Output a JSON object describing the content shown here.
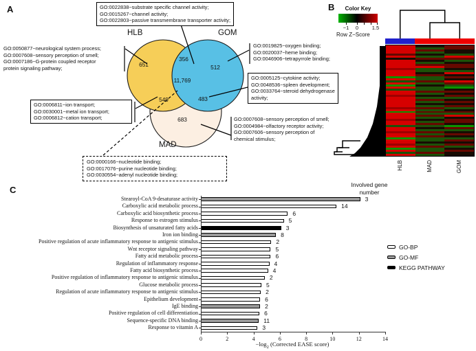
{
  "panelA": {
    "label": "A",
    "venn": {
      "set_labels": {
        "hlb": "HLB",
        "gom": "GOM",
        "mad": "MAD"
      },
      "set_colors": {
        "hlb": "#F6CE58",
        "gom": "#58C0E5",
        "mad": "#FCEFE2"
      },
      "counts": {
        "hlb_only": "651",
        "hlb_gom": "356",
        "gom_only": "512",
        "center": "11,769",
        "hlb_mad": "549",
        "gom_mad": "483",
        "mad_only": "683"
      }
    },
    "callouts": {
      "top": {
        "lines": [
          "GO:0022838~substrate specific channel activity;",
          "GO:0015267~channel activity;",
          "GO:0022803~passive transmembrane transporter activity;"
        ]
      },
      "left": {
        "lines": [
          "GO:0050877~neurological system process;",
          "GO:0007608~sensory perception of smell;",
          "GO:0007186~G-protein coupled receptor",
          "protein signaling pathway;"
        ]
      },
      "left_box": {
        "lines": [
          "GO:0006811~ion transport;",
          "GO:0030001~metal ion transport;",
          "GO:0006812~cation transport;"
        ]
      },
      "right1": {
        "lines": [
          "GO:0019825~oxygen binding;",
          "GO:0020037~heme binding;",
          "GO:0046906~tetrapyrrole binding;"
        ]
      },
      "right_box": {
        "lines": [
          "GO:0005125~cytokine activity;",
          "GO:0048536~spleen development;",
          "GO:0033764~steroid dehydrogenase",
          "activity;"
        ]
      },
      "right3": {
        "lines": [
          "GO:0007608~sensory perception of smell;",
          "GO:0004984~olfactory receptor activity;",
          "GO:0007606~sensory perception of",
          "chemical stimulus;"
        ]
      },
      "dashed_box": {
        "lines": [
          "GO:0000166~nucleotide binding;",
          "GO:0017076~purine nucleotide binding;",
          "GO:0030554~adenyl nucleotide binding;"
        ]
      }
    }
  },
  "panelB": {
    "label": "B",
    "color_key": {
      "title": "Color Key",
      "axis_label": "Row Z−Score",
      "tick_labels": [
        "−1",
        "0",
        "1.5"
      ],
      "gradient": [
        "#00b400",
        "#000000",
        "#cf0000"
      ]
    },
    "columns": [
      "HLB",
      "MAD",
      "GOM"
    ],
    "col_colors": [
      "#2121cc",
      "#ee0000",
      "#ee0000"
    ],
    "heatmap": {
      "palette": {
        "R": "#d60000",
        "O": "#9e0000",
        "r": "#660800",
        "G": "#0c9400",
        "g": "#1c5208",
        "K": "#170c03"
      },
      "rows": [
        "RKr",
        "Rgr",
        "RrK",
        "RgK",
        "rKg",
        "RgR",
        "Krr",
        "RKg",
        "RgK",
        "Rrr",
        "RRr",
        "OgK",
        "Rgg",
        "RKR",
        "RrK",
        "Ggr",
        "RgK",
        "grR",
        "Rgr",
        "GKg",
        "RgG",
        "ggK",
        "Rrr",
        "RgK",
        "OKr",
        "Rgg",
        "RrK",
        "Rgr",
        "RKK",
        "Rgr",
        "Org",
        "RgK",
        "Grr",
        "Rgg",
        "RrR",
        "RgK",
        "OKr",
        "Rgr",
        "RrK",
        "ggG",
        "RKr",
        "Rgg",
        "OrK",
        "Rgr",
        "RrK",
        "Ggg",
        "Rgr",
        "RKK",
        "Ogr",
        "Rrg",
        "GgK",
        "Rgr",
        "grK",
        "RgK"
      ]
    }
  },
  "panelC": {
    "label": "C",
    "header_lines": [
      "Involved gene",
      "number"
    ],
    "xlabel_pre": "−log",
    "xlabel_sub": "2",
    "xlabel_post": " (Corrected EASE score)"
  },
  "chart_data": [
    {
      "type": "venn",
      "title": "Differentially expressed gene overlap",
      "sets": [
        "HLB",
        "GOM",
        "MAD"
      ],
      "values": {
        "HLB": 651,
        "GOM": 512,
        "MAD": 683,
        "HLB∩GOM": 356,
        "HLB∩MAD": 549,
        "GOM∩MAD": 483,
        "HLB∩GOM∩MAD": 11769
      }
    },
    {
      "type": "bar",
      "orientation": "horizontal",
      "xlabel": "−log2 (Corrected EASE score)",
      "xlim": [
        0,
        14
      ],
      "x_ticks": [
        0,
        2,
        4,
        6,
        8,
        10,
        12,
        14
      ],
      "grid": false,
      "legend_position": "right-middle",
      "categories": [
        "Stearoyl-CoA 9-desaturase activity",
        "Carboxylic acid metabolic process",
        "Carboxylic acid biosynthetic process",
        "Response to estrogen stimulus",
        "Biosynthesis of unsaturated fatty acids",
        "Iron ion binding",
        "Positive regulation of acute inflammatory response to antigenic stimulus",
        "Wnt receptor signaling pathway",
        "Fatty acid metabolic process",
        "Regulation of inflammatory response",
        "Fatty acid biosynthetic process",
        "Positive regulation of inflammatory response to antigenic stimulus",
        "Glucose metabolic process",
        "Regulation of acute inflammatory response to antigenic stimulus",
        "Epithelium development",
        "IgE binding",
        "Positive regulation of cell differentiation",
        "Sequence-specific DNA binding",
        "Response to vitamin A"
      ],
      "values": [
        12.1,
        10.3,
        6.6,
        6.3,
        6.1,
        5.7,
        5.35,
        5.3,
        5.3,
        5.2,
        5.1,
        4.85,
        4.6,
        4.55,
        4.5,
        4.5,
        4.45,
        4.4,
        4.3
      ],
      "gene_numbers": [
        3,
        14,
        6,
        5,
        3,
        8,
        2,
        5,
        6,
        4,
        4,
        2,
        5,
        2,
        6,
        2,
        6,
        11,
        3
      ],
      "types": [
        "GO-MF",
        "GO-BP",
        "GO-BP",
        "GO-BP",
        "KEGG",
        "GO-MF",
        "GO-BP",
        "GO-BP",
        "GO-BP",
        "GO-BP",
        "GO-BP",
        "GO-BP",
        "GO-BP",
        "GO-BP",
        "GO-BP",
        "GO-MF",
        "GO-BP",
        "GO-MF",
        "GO-BP"
      ],
      "legend": [
        {
          "label": "GO-BP",
          "fill": "#ffffff"
        },
        {
          "label": "GO-MF",
          "fill": "#9a9a9a"
        },
        {
          "label": "KEGG PATHWAY",
          "fill": "#000000"
        }
      ]
    }
  ]
}
